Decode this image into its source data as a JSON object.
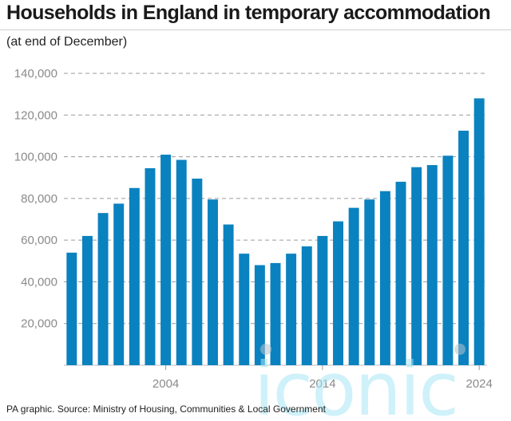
{
  "header": {
    "title": "Households in England in temporary accommodation",
    "subtitle": "(at end of December)"
  },
  "footer": {
    "source": "PA graphic. Source: Ministry of Housing, Communities & Local Government"
  },
  "watermark": {
    "text": "iconic"
  },
  "colors": {
    "bar": "#0a82bf",
    "grid": "#9a9a9a",
    "tick_text": "#8a8a8a"
  },
  "chart_data": {
    "type": "bar",
    "title": "Households in England in temporary accommodation",
    "subtitle": "(at end of December)",
    "xlabel": "",
    "ylabel": "",
    "ylim": [
      0,
      140000
    ],
    "yticks": [
      20000,
      40000,
      60000,
      80000,
      100000,
      120000,
      140000
    ],
    "ytick_labels": [
      "20,000",
      "40,000",
      "60,000",
      "80,000",
      "100,000",
      "120,000",
      "140,000"
    ],
    "xtick_labels": [
      {
        "year": 2004,
        "label": "2004"
      },
      {
        "year": 2014,
        "label": "2014"
      },
      {
        "year": 2024,
        "label": "2024"
      }
    ],
    "grid": "horizontal dashed",
    "categories": [
      1998,
      1999,
      2000,
      2001,
      2002,
      2003,
      2004,
      2005,
      2006,
      2007,
      2008,
      2009,
      2010,
      2011,
      2012,
      2013,
      2014,
      2015,
      2016,
      2017,
      2018,
      2019,
      2020,
      2021,
      2022,
      2023,
      2024
    ],
    "values": [
      54000,
      62000,
      73000,
      77500,
      85000,
      94500,
      101000,
      98500,
      89500,
      79500,
      67500,
      53500,
      48000,
      49000,
      53500,
      57000,
      62000,
      69000,
      75500,
      79500,
      83500,
      88000,
      95000,
      96000,
      100500,
      112500,
      128000
    ]
  }
}
